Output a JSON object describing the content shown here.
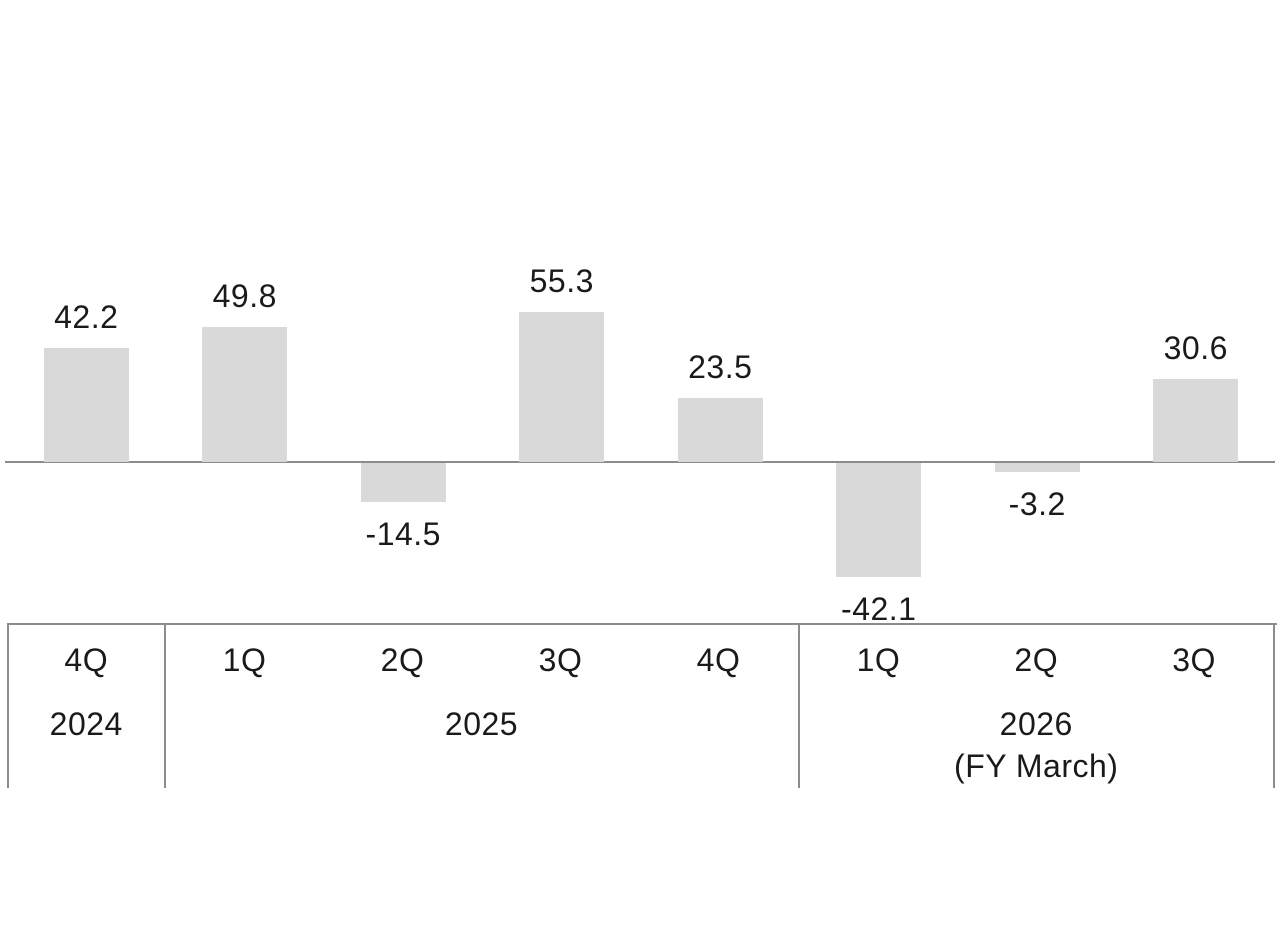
{
  "page": {
    "background": "#ffffff"
  },
  "chart_data": {
    "type": "bar",
    "categories": [
      "4Q",
      "1Q",
      "2Q",
      "3Q",
      "4Q",
      "1Q",
      "2Q",
      "3Q"
    ],
    "values": [
      42.2,
      49.8,
      -14.5,
      55.3,
      23.5,
      -42.1,
      -3.2,
      30.6
    ],
    "value_labels": [
      "42.2",
      "49.8",
      "-14.5",
      "55.3",
      "23.5",
      "-42.1",
      "-3.2",
      "30.6"
    ],
    "x_axis_groups": [
      {
        "year": "2024",
        "sublabel": "",
        "quarters": [
          "4Q"
        ]
      },
      {
        "year": "2025",
        "sublabel": "",
        "quarters": [
          "1Q",
          "2Q",
          "3Q",
          "4Q"
        ]
      },
      {
        "year": "2026",
        "sublabel": "(FY March)",
        "quarters": [
          "1Q",
          "2Q",
          "3Q"
        ]
      }
    ],
    "title": "",
    "xlabel": "",
    "ylabel": "",
    "ylim": [
      -60,
      75
    ],
    "grid": false,
    "legend": false,
    "data_labels": true,
    "bar_color": "#d9d9d9",
    "axis_color": "#8c8c8c",
    "text_color": "#1a1a1a"
  }
}
